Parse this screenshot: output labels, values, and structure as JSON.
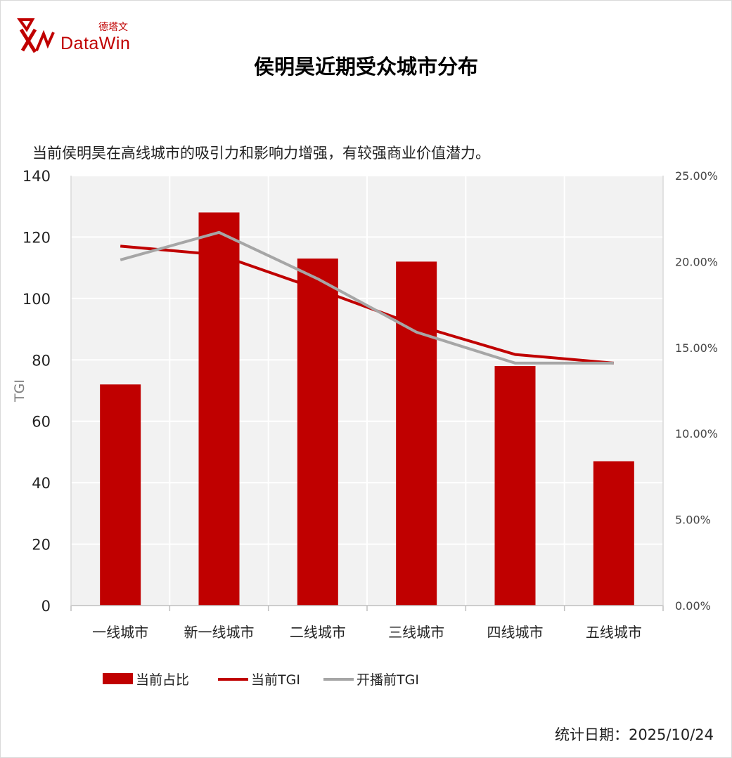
{
  "header": {
    "logo_text": "DataWin",
    "logo_cn": "德塔文",
    "title": "侯明昊近期受众城市分布",
    "subtitle": "当前侯明昊在高线城市的吸引力和影响力增强，有较强商业价值潜力。"
  },
  "footer": {
    "date": "统计日期：2025/10/24"
  },
  "colors": {
    "bar": "#c00000",
    "current_tgi": "#c00000",
    "prev_tgi": "#a6a6a6",
    "plot_bg": "#f2f2f2",
    "grid": "#ffffff"
  },
  "chart_data": {
    "type": "bar",
    "title": "侯明昊近期受众城市分布",
    "categories": [
      "一线城市",
      "新一线城市",
      "二线城市",
      "三线城市",
      "四线城市",
      "五线城市"
    ],
    "ylabel": "TGI",
    "ylim": [
      0,
      140
    ],
    "yticks": [
      "0",
      "20",
      "40",
      "60",
      "80",
      "100",
      "120",
      "140"
    ],
    "y2lim": [
      0,
      0.25
    ],
    "y2ticks": [
      "0.00%",
      "5.00%",
      "10.00%",
      "15.00%",
      "20.00%",
      "25.00%"
    ],
    "grid": true,
    "legend_position": "bottom",
    "series": [
      {
        "name": "当前占比",
        "type": "bar",
        "axis": "left",
        "values": [
          72,
          128,
          113,
          112,
          78,
          47
        ]
      },
      {
        "name": "当前TGI",
        "type": "line",
        "axis": "right",
        "values": [
          0.209,
          0.204,
          0.184,
          0.163,
          0.146,
          0.141
        ]
      },
      {
        "name": "开播前TGI",
        "type": "line",
        "axis": "right",
        "values": [
          0.201,
          0.217,
          0.19,
          0.159,
          0.141,
          0.141
        ]
      }
    ]
  }
}
